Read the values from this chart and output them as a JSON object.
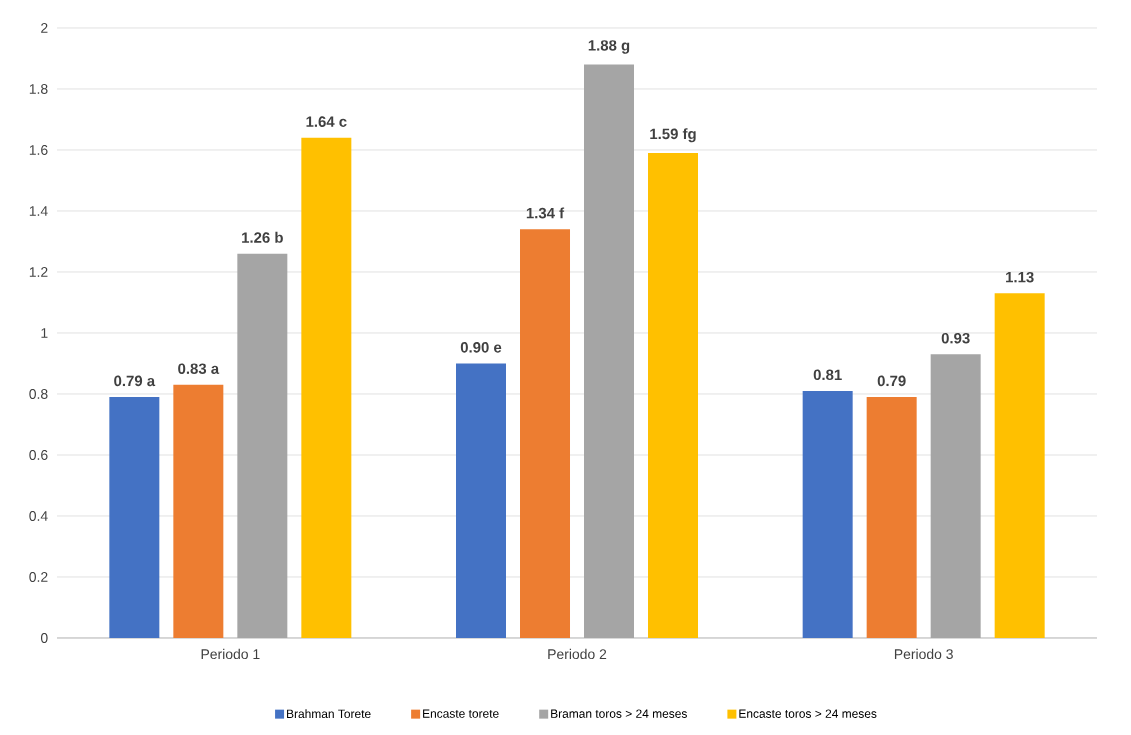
{
  "chart_data": {
    "type": "bar",
    "categories": [
      "Periodo 1",
      "Periodo 2",
      "Periodo 3"
    ],
    "series": [
      {
        "name": "Brahman Torete",
        "color": "#4472c4",
        "values": [
          0.79,
          0.9,
          0.81
        ],
        "value_labels": [
          "0.79 a",
          "0.90 e",
          "0.81"
        ]
      },
      {
        "name": "Encaste torete",
        "color": "#ed7d31",
        "values": [
          0.83,
          1.34,
          0.79
        ],
        "value_labels": [
          "0.83 a",
          "1.34 f",
          "0.79"
        ]
      },
      {
        "name": "Braman toros > 24 meses",
        "color": "#a5a5a5",
        "values": [
          1.26,
          1.88,
          0.93
        ],
        "value_labels": [
          "1.26 b",
          "1.88 g",
          "0.93"
        ]
      },
      {
        "name": "Encaste toros > 24 meses",
        "color": "#ffc000",
        "values": [
          1.64,
          1.59,
          1.13
        ],
        "value_labels": [
          "1.64 c",
          "1.59 fg",
          "1.13"
        ]
      }
    ],
    "ylim": [
      0,
      2
    ],
    "yticks": [
      0,
      0.2,
      0.4,
      0.6,
      0.8,
      1,
      1.2,
      1.4,
      1.6,
      1.8,
      2
    ],
    "grid": "y",
    "legend": "bottom"
  }
}
